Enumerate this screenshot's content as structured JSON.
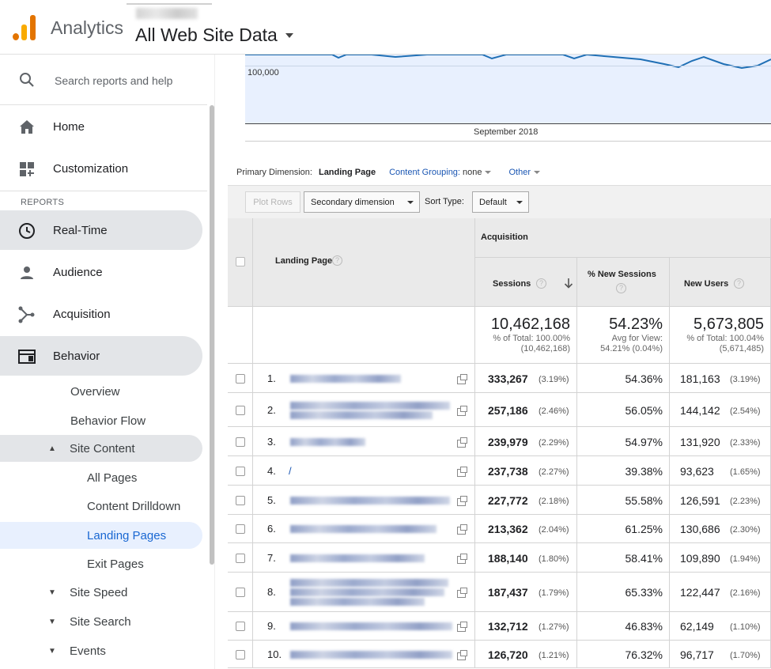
{
  "header": {
    "app_name": "Analytics",
    "view_name": "All Web Site Data"
  },
  "sidebar": {
    "search_placeholder": "Search reports and help",
    "top_items": [
      {
        "label": "Home",
        "icon": "home-icon"
      },
      {
        "label": "Customization",
        "icon": "dashboard-icon"
      }
    ],
    "section_label": "REPORTS",
    "report_items": [
      {
        "label": "Real-Time",
        "icon": "clock-icon",
        "state": "highlighted"
      },
      {
        "label": "Audience",
        "icon": "person-icon"
      },
      {
        "label": "Acquisition",
        "icon": "acquisition-icon"
      },
      {
        "label": "Behavior",
        "icon": "behavior-icon",
        "state": "expanded"
      }
    ],
    "behavior_sub": {
      "overview": "Overview",
      "behavior_flow": "Behavior Flow",
      "site_content": "Site Content",
      "site_content_children": [
        "All Pages",
        "Content Drilldown",
        "Landing Pages",
        "Exit Pages"
      ],
      "selected": "Landing Pages",
      "site_speed": "Site Speed",
      "site_search": "Site Search",
      "events": "Events"
    }
  },
  "chart": {
    "y_tick": "100,000",
    "x_label": "September 2018",
    "line_color": "#1f6fb5",
    "fill_color": "#e8f0fe"
  },
  "dimensions": {
    "primary_label": "Primary Dimension:",
    "primary_value": "Landing Page",
    "content_grouping_label": "Content Grouping:",
    "content_grouping_value": "none",
    "other": "Other"
  },
  "toolbar": {
    "plot_rows": "Plot Rows",
    "secondary_dimension": "Secondary dimension",
    "sort_type_label": "Sort Type:",
    "sort_type_value": "Default"
  },
  "table": {
    "group_header": "Acquisition",
    "columns": {
      "landing_page": "Landing Page",
      "sessions": "Sessions",
      "new_sessions": "% New Sessions",
      "new_users": "New Users"
    },
    "totals": {
      "sessions": "10,462,168",
      "sessions_sub1": "% of Total: 100.00%",
      "sessions_sub2": "(10,462,168)",
      "new_sessions": "54.23%",
      "new_sessions_sub1": "Avg for View:",
      "new_sessions_sub2": "54.21% (0.04%)",
      "new_users": "5,673,805",
      "new_users_sub1": "% of Total: 100.04%",
      "new_users_sub2": "(5,671,485)"
    },
    "rows": [
      {
        "num": "1.",
        "page": "",
        "sessions": "333,267",
        "sessions_pct": "(3.19%)",
        "new_sessions": "54.36%",
        "new_users": "181,163",
        "new_users_pct": "(3.19%)"
      },
      {
        "num": "2.",
        "page": "",
        "sessions": "257,186",
        "sessions_pct": "(2.46%)",
        "new_sessions": "56.05%",
        "new_users": "144,142",
        "new_users_pct": "(2.54%)"
      },
      {
        "num": "3.",
        "page": "",
        "sessions": "239,979",
        "sessions_pct": "(2.29%)",
        "new_sessions": "54.97%",
        "new_users": "131,920",
        "new_users_pct": "(2.33%)"
      },
      {
        "num": "4.",
        "page": "/",
        "sessions": "237,738",
        "sessions_pct": "(2.27%)",
        "new_sessions": "39.38%",
        "new_users": "93,623",
        "new_users_pct": "(1.65%)"
      },
      {
        "num": "5.",
        "page": "",
        "sessions": "227,772",
        "sessions_pct": "(2.18%)",
        "new_sessions": "55.58%",
        "new_users": "126,591",
        "new_users_pct": "(2.23%)"
      },
      {
        "num": "6.",
        "page": "",
        "sessions": "213,362",
        "sessions_pct": "(2.04%)",
        "new_sessions": "61.25%",
        "new_users": "130,686",
        "new_users_pct": "(2.30%)"
      },
      {
        "num": "7.",
        "page": "",
        "sessions": "188,140",
        "sessions_pct": "(1.80%)",
        "new_sessions": "58.41%",
        "new_users": "109,890",
        "new_users_pct": "(1.94%)"
      },
      {
        "num": "8.",
        "page": "",
        "sessions": "187,437",
        "sessions_pct": "(1.79%)",
        "new_sessions": "65.33%",
        "new_users": "122,447",
        "new_users_pct": "(2.16%)"
      },
      {
        "num": "9.",
        "page": "",
        "sessions": "132,712",
        "sessions_pct": "(1.27%)",
        "new_sessions": "46.83%",
        "new_users": "62,149",
        "new_users_pct": "(1.10%)"
      },
      {
        "num": "10.",
        "page": "",
        "sessions": "126,720",
        "sessions_pct": "(1.21%)",
        "new_sessions": "76.32%",
        "new_users": "96,717",
        "new_users_pct": "(1.70%)"
      }
    ]
  }
}
